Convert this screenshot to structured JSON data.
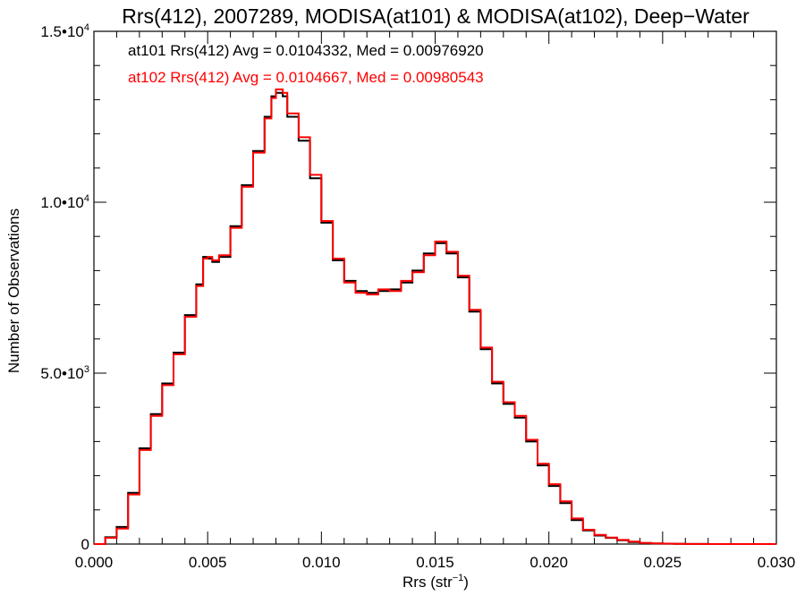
{
  "chart_data": {
    "type": "line",
    "title": "Rrs(412), 2007289, MODISA(at101) & MODISA(at102), Deep−Water",
    "xlabel_main": "Rrs (str",
    "xlabel_sup": "−1",
    "xlabel_close": ")",
    "ylabel": "Number of Observations",
    "xlim": [
      0.0,
      0.03
    ],
    "ylim": [
      0,
      15000
    ],
    "x_ticks": [
      0.0,
      0.005,
      0.01,
      0.015,
      0.02,
      0.025,
      0.03
    ],
    "x_tick_labels": [
      "0.000",
      "0.005",
      "0.010",
      "0.015",
      "0.020",
      "0.025",
      "0.030"
    ],
    "y_ticks": [
      {
        "value": 0,
        "mant": "0",
        "exp": ""
      },
      {
        "value": 5000,
        "mant": "5.0•10",
        "exp": "3"
      },
      {
        "value": 10000,
        "mant": "1.0•10",
        "exp": "4"
      },
      {
        "value": 15000,
        "mant": "1.5•10",
        "exp": "4"
      }
    ],
    "annotations": [
      {
        "text": "at101 Rrs(412) Avg = 0.0104332, Med = 0.00976920",
        "color": "#000000"
      },
      {
        "text": "at102 Rrs(412) Avg = 0.0104667, Med = 0.00980543",
        "color": "#ff0000"
      }
    ],
    "series": [
      {
        "label": "at101",
        "color": "#000000",
        "x": [
          0.0,
          0.0005,
          0.001,
          0.0015,
          0.002,
          0.0025,
          0.003,
          0.0035,
          0.004,
          0.0045,
          0.0048,
          0.005,
          0.0052,
          0.0055,
          0.006,
          0.0065,
          0.007,
          0.0075,
          0.0078,
          0.008,
          0.0083,
          0.0085,
          0.009,
          0.0095,
          0.01,
          0.0105,
          0.011,
          0.0115,
          0.012,
          0.0125,
          0.013,
          0.0135,
          0.014,
          0.0145,
          0.015,
          0.0155,
          0.016,
          0.0165,
          0.017,
          0.0175,
          0.018,
          0.0185,
          0.019,
          0.0195,
          0.02,
          0.0205,
          0.021,
          0.0215,
          0.022,
          0.0225,
          0.023,
          0.0235,
          0.024,
          0.0245,
          0.025,
          0.0255,
          0.026,
          0.027,
          0.028,
          0.029,
          0.03
        ],
        "y": [
          0,
          200,
          500,
          1500,
          2800,
          3800,
          4700,
          5600,
          6700,
          7600,
          8400,
          8350,
          8250,
          8400,
          9300,
          10500,
          11500,
          12500,
          13100,
          13200,
          13100,
          12500,
          11800,
          10700,
          9400,
          8300,
          7700,
          7400,
          7350,
          7400,
          7450,
          7650,
          8000,
          8500,
          8800,
          8500,
          7800,
          6800,
          5700,
          4700,
          4100,
          3700,
          3000,
          2300,
          1700,
          1200,
          700,
          400,
          250,
          180,
          110,
          60,
          30,
          15,
          10,
          5,
          2,
          0,
          0,
          0,
          0
        ]
      },
      {
        "label": "at102",
        "color": "#ff0000",
        "x": [
          0.0,
          0.0005,
          0.001,
          0.0015,
          0.002,
          0.0025,
          0.003,
          0.0035,
          0.004,
          0.0045,
          0.0048,
          0.005,
          0.0052,
          0.0055,
          0.006,
          0.0065,
          0.007,
          0.0075,
          0.0078,
          0.008,
          0.0083,
          0.0085,
          0.009,
          0.0095,
          0.01,
          0.0105,
          0.011,
          0.0115,
          0.012,
          0.0125,
          0.013,
          0.0135,
          0.014,
          0.0145,
          0.015,
          0.0155,
          0.016,
          0.0165,
          0.017,
          0.0175,
          0.018,
          0.0185,
          0.019,
          0.0195,
          0.02,
          0.0205,
          0.021,
          0.0215,
          0.022,
          0.0225,
          0.023,
          0.0235,
          0.024,
          0.0245,
          0.025,
          0.0255,
          0.026,
          0.027,
          0.028,
          0.029,
          0.03
        ],
        "y": [
          0,
          180,
          450,
          1450,
          2750,
          3750,
          4650,
          5550,
          6650,
          7550,
          8350,
          8400,
          8300,
          8450,
          9250,
          10450,
          11450,
          12450,
          13050,
          13300,
          13200,
          12600,
          11900,
          10800,
          9450,
          8350,
          7650,
          7350,
          7300,
          7450,
          7400,
          7700,
          7950,
          8450,
          8850,
          8550,
          7850,
          6850,
          5750,
          4750,
          4150,
          3750,
          3050,
          2350,
          1750,
          1250,
          750,
          420,
          270,
          190,
          120,
          70,
          35,
          18,
          12,
          6,
          3,
          0,
          0,
          0,
          0
        ]
      }
    ]
  }
}
